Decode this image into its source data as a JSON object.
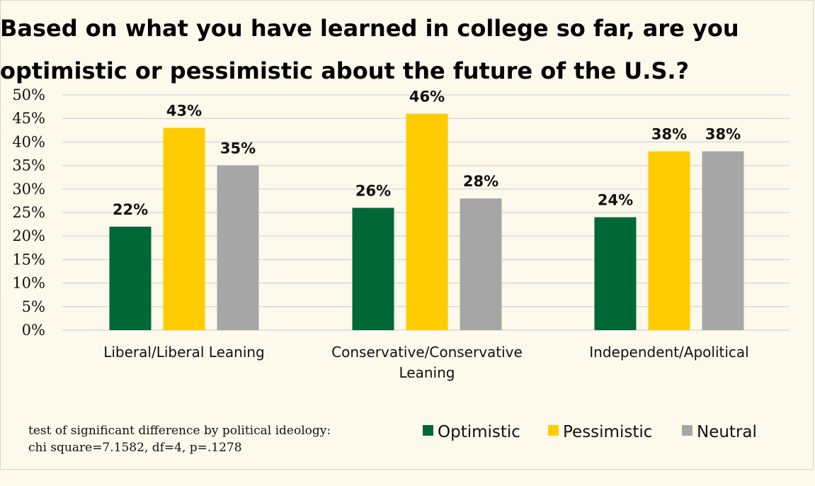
{
  "chart_data": {
    "type": "bar",
    "title": [
      "Based on what you have learned in college so far, are you",
      "optimistic or pessimistic about the future of the U.S.?"
    ],
    "categories": [
      [
        "Liberal/Liberal Leaning"
      ],
      [
        "Conservative/Conservative",
        "Leaning"
      ],
      [
        "Independent/Apolitical"
      ]
    ],
    "series": [
      {
        "name": "Optimistic",
        "color": "#006837",
        "values": [
          22,
          26,
          24
        ],
        "labels": [
          "22%",
          "26%",
          "24%"
        ]
      },
      {
        "name": "Pessimistic",
        "color": "#fecc00",
        "values": [
          43,
          46,
          38
        ],
        "labels": [
          "43%",
          "46%",
          "38%"
        ]
      },
      {
        "name": "Neutral",
        "color": "#a6a6a6",
        "values": [
          35,
          28,
          38
        ],
        "labels": [
          "35%",
          "28%",
          "38%"
        ]
      }
    ],
    "ylim": [
      0,
      50
    ],
    "yticks": [
      0,
      5,
      10,
      15,
      20,
      25,
      30,
      35,
      40,
      45,
      50
    ],
    "yticklabels": [
      "0%",
      "5%",
      "10%",
      "15%",
      "20%",
      "25%",
      "30%",
      "35%",
      "40%",
      "45%",
      "50%"
    ],
    "xlabel": "",
    "ylabel": "",
    "grid": true,
    "legend_position": "bottom-right"
  },
  "note": [
    "test of significant difference by political ideology:",
    "chi square=7.1582, df=4, p=.1278"
  ]
}
